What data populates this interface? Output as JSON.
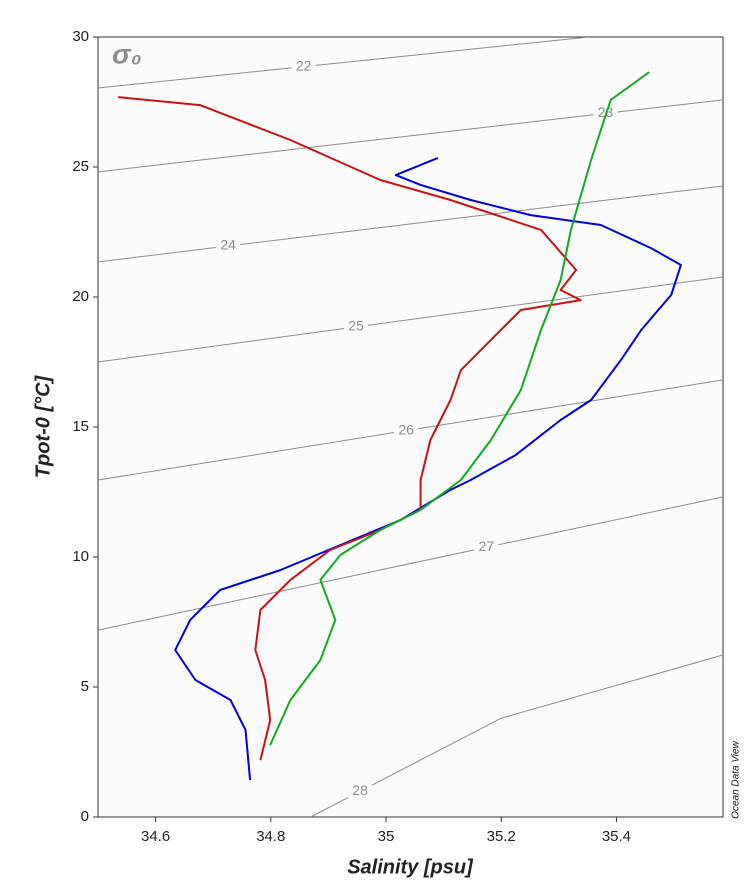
{
  "chart_data": {
    "type": "line",
    "title": "σ₀",
    "xlabel": "Salinity [psu]",
    "ylabel": "Tpot-0 [°C]",
    "credit": "Ocean Data View",
    "xlim": [
      34.5,
      35.585
    ],
    "ylim": [
      0,
      30
    ],
    "xticks": [
      34.6,
      34.8,
      35,
      35.2,
      35.4
    ],
    "yticks": [
      0,
      5,
      10,
      15,
      20,
      25,
      30
    ],
    "contour_color": "#8c8c8c",
    "contours": [
      {
        "level": 22,
        "x": [
          34.5,
          34.857,
          35.352
        ],
        "y": [
          28.04,
          28.86,
          30
        ]
      },
      {
        "level": 23,
        "x": [
          34.5,
          35.381,
          35.585
        ],
        "y": [
          24.81,
          27.06,
          27.58
        ]
      },
      {
        "level": 24,
        "x": [
          34.5,
          34.726,
          35.585
        ],
        "y": [
          21.35,
          21.96,
          24.27
        ]
      },
      {
        "level": 25,
        "x": [
          34.5,
          34.948,
          35.585
        ],
        "y": [
          17.5,
          18.85,
          20.77
        ]
      },
      {
        "level": 26,
        "x": [
          34.5,
          35.035,
          35.585
        ],
        "y": [
          12.96,
          14.86,
          16.81
        ]
      },
      {
        "level": 27,
        "x": [
          34.5,
          35.174,
          35.585
        ],
        "y": [
          7.19,
          10.37,
          12.31
        ]
      },
      {
        "level": 28,
        "x": [
          34.869,
          34.955,
          35.2,
          35.585
        ],
        "y": [
          0,
          0.99,
          3.8,
          6.23
        ]
      }
    ],
    "series": [
      {
        "color": "#0000dd",
        "x": [
          35.09,
          35.017,
          35.06,
          35.147,
          35.251,
          35.373,
          35.46,
          35.512,
          35.495,
          35.443,
          35.408,
          35.356,
          35.303,
          35.225,
          35.147,
          35.112,
          35.025,
          34.921,
          34.817,
          34.712,
          34.66,
          34.634,
          34.669,
          34.73,
          34.756,
          34.764
        ],
        "y": [
          25.35,
          24.69,
          24.31,
          23.73,
          23.15,
          22.77,
          21.88,
          21.23,
          20.08,
          18.73,
          17.58,
          16.04,
          15.27,
          13.92,
          12.96,
          12.58,
          11.42,
          10.46,
          9.5,
          8.73,
          7.58,
          6.42,
          5.27,
          4.5,
          3.35,
          1.42
        ]
      },
      {
        "color": "#cc1111",
        "x": [
          34.535,
          34.677,
          34.834,
          34.99,
          35.112,
          35.269,
          35.33,
          35.303,
          35.338,
          35.234,
          35.182,
          35.13,
          35.112,
          35.077,
          35.06,
          35.06,
          34.99,
          34.903,
          34.834,
          34.782,
          34.773,
          34.79,
          34.799,
          34.782
        ],
        "y": [
          27.69,
          27.38,
          26.04,
          24.5,
          23.73,
          22.58,
          21.04,
          20.27,
          19.88,
          19.5,
          18.35,
          17.19,
          16.04,
          14.5,
          12.96,
          11.81,
          11.04,
          10.27,
          9.12,
          7.96,
          6.42,
          5.27,
          3.73,
          2.19
        ]
      },
      {
        "color": "#11aa22",
        "x": [
          35.457,
          35.39,
          35.356,
          35.321,
          35.303,
          35.269,
          35.234,
          35.182,
          35.13,
          35.06,
          34.99,
          34.921,
          34.886,
          34.912,
          34.886,
          34.834,
          34.799
        ],
        "y": [
          28.65,
          27.58,
          25.27,
          22.58,
          20.65,
          18.73,
          16.42,
          14.5,
          12.96,
          11.81,
          11.04,
          10.08,
          9.12,
          7.58,
          6.04,
          4.5,
          2.77
        ]
      }
    ]
  }
}
